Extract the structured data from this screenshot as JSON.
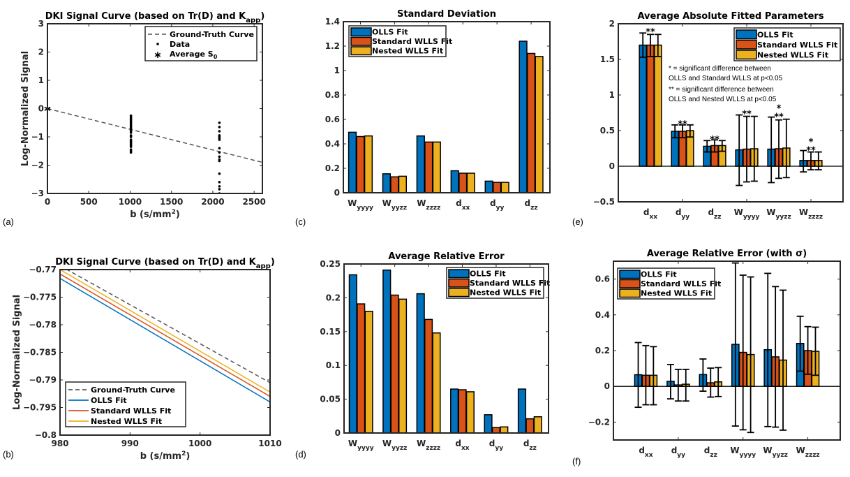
{
  "colors": {
    "olls": "#0072BD",
    "standard": "#D95319",
    "nested": "#EDB120",
    "ground_truth": "#555555",
    "data": "#000000"
  },
  "chart_data": [
    {
      "id": "a",
      "panel_label": "(a)",
      "type": "scatter",
      "title": "DKI Signal Curve (based on Tr(D) and K",
      "title_sub": "app",
      "title_end": ")",
      "xlabel": "b (s/mm",
      "xlabel_sup": "2",
      "xlabel_end": ")",
      "ylabel": "Log-Normalized Signal",
      "xlim": [
        0,
        2600
      ],
      "ylim": [
        -3,
        3
      ],
      "xticks": [
        0,
        500,
        1000,
        1500,
        2000,
        2500
      ],
      "yticks": [
        -3,
        -2,
        -1,
        0,
        1,
        2,
        3
      ],
      "legend": {
        "position": "top-right",
        "entries": [
          "Ground-Truth Curve",
          "Data",
          "Average S"
        ],
        "s0_sub": "0"
      },
      "ground_truth": {
        "x": [
          0,
          2600
        ],
        "y": [
          0,
          -1.9
        ]
      },
      "data_points": {
        "b1000": {
          "x": 1010,
          "y": [
            -0.25,
            -0.3,
            -0.35,
            -0.4,
            -0.45,
            -0.5,
            -0.55,
            -0.6,
            -0.65,
            -0.7,
            -0.75,
            -0.8,
            -0.85,
            -0.95,
            -1.0,
            -1.1,
            -1.15,
            -1.2,
            -1.25,
            -1.3,
            -1.35,
            -1.45,
            -1.5,
            -1.55
          ]
        },
        "b2000": {
          "x": 2080,
          "y": [
            -0.5,
            -0.65,
            -0.8,
            -0.95,
            -1.0,
            -1.05,
            -1.1,
            -1.4,
            -1.55,
            -1.7,
            -1.8,
            -1.85,
            -2.3,
            -2.6,
            -2.75,
            -2.85,
            -3.0
          ]
        }
      },
      "average_s0": {
        "x": 0,
        "y": 0
      }
    },
    {
      "id": "b",
      "panel_label": "(b)",
      "type": "line",
      "title": "DKI Signal Curve (based on Tr(D) and K",
      "title_sub": "app",
      "title_end": ")",
      "xlabel": "b (s/mm",
      "xlabel_sup": "2",
      "xlabel_end": ")",
      "ylabel": "Log-Normalized Signal",
      "xlim": [
        980,
        1010
      ],
      "ylim": [
        -0.8,
        -0.77
      ],
      "xticks": [
        980,
        990,
        1000,
        1010
      ],
      "yticks": [
        -0.8,
        -0.795,
        -0.79,
        -0.785,
        -0.78,
        -0.775,
        -0.77
      ],
      "ytick_labels": [
        "-0.8",
        "-0.795",
        "-0.79",
        "-0.785",
        "-0.78",
        "-0.775",
        "-0.77"
      ],
      "legend": {
        "position": "bottom-left",
        "entries": [
          "Ground-Truth Curve",
          "OLLS Fit",
          "Standard WLLS Fit",
          "Nested WLLS Fit"
        ]
      },
      "series": [
        {
          "name": "Ground-Truth Curve",
          "x": [
            980,
            1010
          ],
          "y": [
            -0.7693,
            -0.7905
          ],
          "style": "dashed"
        },
        {
          "name": "OLLS Fit",
          "x": [
            980,
            1010
          ],
          "y": [
            -0.7716,
            -0.794
          ]
        },
        {
          "name": "Standard WLLS Fit",
          "x": [
            980,
            1010
          ],
          "y": [
            -0.7708,
            -0.793
          ]
        },
        {
          "name": "Nested WLLS Fit",
          "x": [
            980,
            1010
          ],
          "y": [
            -0.77,
            -0.7922
          ]
        }
      ]
    },
    {
      "id": "c",
      "panel_label": "(c)",
      "type": "bar",
      "title": "Standard Deviation",
      "categories": [
        {
          "base": "W",
          "sub": "yyyy"
        },
        {
          "base": "W",
          "sub": "yyzz"
        },
        {
          "base": "W",
          "sub": "zzzz"
        },
        {
          "base": "d",
          "sub": "xx"
        },
        {
          "base": "d",
          "sub": "yy"
        },
        {
          "base": "d",
          "sub": "zz"
        }
      ],
      "ylim": [
        0,
        1.4
      ],
      "yticks": [
        0,
        0.2,
        0.4,
        0.6,
        0.8,
        1,
        1.2,
        1.4
      ],
      "ytick_labels": [
        "0",
        "0.2",
        "0.4",
        "0.6",
        "0.8",
        "1",
        "1.2",
        "1.4"
      ],
      "legend": {
        "position": "top-left",
        "entries": [
          "OLLS Fit",
          "Standard WLLS Fit",
          "Nested WLLS Fit"
        ]
      },
      "series": [
        {
          "name": "OLLS Fit",
          "values": [
            0.495,
            0.155,
            0.465,
            0.18,
            0.095,
            1.24
          ]
        },
        {
          "name": "Standard WLLS Fit",
          "values": [
            0.46,
            0.13,
            0.415,
            0.16,
            0.085,
            1.14
          ]
        },
        {
          "name": "Nested WLLS Fit",
          "values": [
            0.465,
            0.135,
            0.415,
            0.16,
            0.085,
            1.115
          ]
        }
      ]
    },
    {
      "id": "d",
      "panel_label": "(d)",
      "type": "bar",
      "title": "Average Relative Error",
      "categories": [
        {
          "base": "W",
          "sub": "yyyy"
        },
        {
          "base": "W",
          "sub": "yyzz"
        },
        {
          "base": "W",
          "sub": "zzzz"
        },
        {
          "base": "d",
          "sub": "xx"
        },
        {
          "base": "d",
          "sub": "yy"
        },
        {
          "base": "d",
          "sub": "zz"
        }
      ],
      "ylim": [
        0,
        0.25
      ],
      "yticks": [
        0,
        0.05,
        0.1,
        0.15,
        0.2,
        0.25
      ],
      "ytick_labels": [
        "0",
        "0.05",
        "0.1",
        "0.15",
        "0.2",
        "0.25"
      ],
      "legend": {
        "position": "top-right",
        "entries": [
          "OLLS Fit",
          "Standard WLLS Fit",
          "Nested WLLS Fit"
        ]
      },
      "series": [
        {
          "name": "OLLS Fit",
          "values": [
            0.234,
            0.241,
            0.206,
            0.065,
            0.027,
            0.065
          ]
        },
        {
          "name": "Standard WLLS Fit",
          "values": [
            0.191,
            0.204,
            0.168,
            0.064,
            0.008,
            0.021
          ]
        },
        {
          "name": "Nested WLLS Fit",
          "values": [
            0.18,
            0.198,
            0.148,
            0.061,
            0.009,
            0.024
          ]
        }
      ]
    },
    {
      "id": "e",
      "panel_label": "(e)",
      "type": "bar",
      "title": "Average Absolute Fitted Parameters",
      "categories": [
        {
          "base": "d",
          "sub": "xx"
        },
        {
          "base": "d",
          "sub": "yy"
        },
        {
          "base": "d",
          "sub": "zz"
        },
        {
          "base": "W",
          "sub": "yyyy"
        },
        {
          "base": "W",
          "sub": "yyzz"
        },
        {
          "base": "W",
          "sub": "zzzz"
        }
      ],
      "ylim": [
        -0.5,
        2
      ],
      "yticks": [
        -0.5,
        0,
        0.5,
        1,
        1.5,
        2
      ],
      "ytick_labels": [
        "-0.5",
        "0",
        "0.5",
        "1",
        "1.5",
        "2"
      ],
      "legend": {
        "position": "top-right",
        "entries": [
          "OLLS Fit",
          "Standard WLLS Fit",
          "Nested WLLS Fit"
        ]
      },
      "series": [
        {
          "name": "OLLS Fit",
          "values": [
            1.7,
            0.49,
            0.28,
            0.23,
            0.24,
            0.08
          ],
          "err_upper": [
            1.87,
            0.58,
            0.36,
            0.72,
            0.69,
            0.22
          ],
          "err_lower": [
            1.53,
            0.4,
            0.2,
            -0.27,
            -0.23,
            -0.08
          ]
        },
        {
          "name": "Standard WLLS Fit",
          "values": [
            1.7,
            0.49,
            0.29,
            0.24,
            0.245,
            0.08
          ],
          "err_upper": [
            1.85,
            0.58,
            0.37,
            0.7,
            0.65,
            0.2
          ],
          "err_lower": [
            1.54,
            0.4,
            0.2,
            -0.22,
            -0.17,
            -0.05
          ]
        },
        {
          "name": "Nested WLLS Fit",
          "values": [
            1.7,
            0.5,
            0.29,
            0.245,
            0.255,
            0.08
          ],
          "err_upper": [
            1.85,
            0.58,
            0.36,
            0.7,
            0.66,
            0.2
          ],
          "err_lower": [
            1.54,
            0.41,
            0.21,
            -0.21,
            -0.16,
            -0.05
          ]
        }
      ],
      "significance": [
        {
          "category": 0,
          "marks": [
            "**"
          ],
          "at": 1.9
        },
        {
          "category": 1,
          "marks": [
            "**"
          ],
          "at": 0.61
        },
        {
          "category": 2,
          "marks": [
            "**"
          ],
          "at": 0.39
        },
        {
          "category": 3,
          "marks": [
            "**"
          ],
          "at": 0.75
        },
        {
          "category": 4,
          "marks": [
            "*",
            "**"
          ],
          "at": 0.71
        },
        {
          "category": 5,
          "marks": [
            "*",
            "**"
          ],
          "at": 0.24
        }
      ],
      "annotations": [
        "* = significant difference between",
        "OLLS and Standard WLLS at p<0.05",
        "** = significant difference between",
        "OLLS and Nested WLLS at p<0.05"
      ]
    },
    {
      "id": "f",
      "panel_label": "(f)",
      "type": "bar",
      "title": "Average Relative Error (with σ)",
      "categories": [
        {
          "base": "d",
          "sub": "xx"
        },
        {
          "base": "d",
          "sub": "yy"
        },
        {
          "base": "d",
          "sub": "zz"
        },
        {
          "base": "W",
          "sub": "yyyy"
        },
        {
          "base": "W",
          "sub": "yyzz"
        },
        {
          "base": "W",
          "sub": "zzzz"
        }
      ],
      "ylim": [
        -0.3,
        0.7
      ],
      "yticks": [
        -0.2,
        0,
        0.2,
        0.4,
        0.6
      ],
      "ytick_labels": [
        "-0.2",
        "0",
        "0.2",
        "0.4",
        "0.6"
      ],
      "legend": {
        "position": "top-left",
        "entries": [
          "OLLS Fit",
          "Standard WLLS Fit",
          "Nested WLLS Fit"
        ]
      },
      "series": [
        {
          "name": "OLLS Fit",
          "values": [
            0.065,
            0.028,
            0.066,
            0.235,
            0.205,
            0.24
          ],
          "err_upper": [
            0.245,
            0.122,
            0.153,
            0.69,
            0.632,
            0.392
          ],
          "err_lower": [
            -0.117,
            -0.07,
            -0.027,
            -0.222,
            -0.225,
            0.085
          ]
        },
        {
          "name": "Standard WLLS Fit",
          "values": [
            0.062,
            0.008,
            0.02,
            0.19,
            0.165,
            0.2
          ],
          "err_upper": [
            0.228,
            0.095,
            0.102,
            0.622,
            0.558,
            0.334
          ],
          "err_lower": [
            -0.103,
            -0.082,
            -0.06,
            -0.243,
            -0.228,
            0.068
          ]
        },
        {
          "name": "Nested WLLS Fit",
          "values": [
            0.062,
            0.012,
            0.025,
            0.178,
            0.147,
            0.196
          ],
          "err_upper": [
            0.222,
            0.095,
            0.105,
            0.612,
            0.538,
            0.331
          ],
          "err_lower": [
            -0.103,
            -0.082,
            -0.057,
            -0.258,
            -0.245,
            0.062
          ]
        }
      ]
    }
  ]
}
